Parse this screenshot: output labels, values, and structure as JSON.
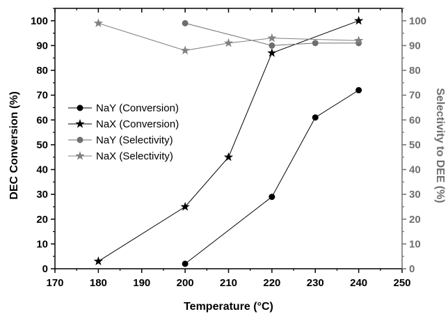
{
  "chart_data": {
    "type": "line",
    "title": "",
    "xlabel": "Temperature (°C)",
    "ylabel": "DEC Conversion (%)",
    "y2label": "Selectivity to DEE (%)",
    "xlim": [
      170,
      250
    ],
    "ylim": [
      0,
      105
    ],
    "y2lim": [
      0,
      105
    ],
    "x_ticks": [
      170,
      180,
      190,
      200,
      210,
      220,
      230,
      240,
      250
    ],
    "y_ticks": [
      0,
      10,
      20,
      30,
      40,
      50,
      60,
      70,
      80,
      90,
      100
    ],
    "y2_ticks": [
      0,
      10,
      20,
      30,
      40,
      50,
      60,
      70,
      80,
      90,
      100
    ],
    "grid": false,
    "legend_position": "center-left",
    "series": [
      {
        "name": "NaY (Conversion)",
        "axis": "left",
        "marker": "circle",
        "color": "#000000",
        "x": [
          200,
          220,
          230,
          240
        ],
        "y": [
          2,
          29,
          61,
          72
        ]
      },
      {
        "name": "NaX (Conversion)",
        "axis": "left",
        "marker": "star",
        "color": "#000000",
        "x": [
          180,
          200,
          210,
          220,
          240
        ],
        "y": [
          3,
          25,
          45,
          87,
          100
        ]
      },
      {
        "name": "NaY (Selectivity)",
        "axis": "right",
        "marker": "circle",
        "color": "#6e6e6e",
        "x": [
          200,
          220,
          230,
          240
        ],
        "y": [
          99,
          90,
          91,
          91
        ]
      },
      {
        "name": "NaX (Selectivity)",
        "axis": "right",
        "marker": "star",
        "color": "#808080",
        "x": [
          180,
          200,
          210,
          220,
          240
        ],
        "y": [
          99,
          88,
          91,
          93,
          92
        ]
      }
    ],
    "colors": {
      "left_axis": "#000000",
      "right_axis": "#6e6e6e"
    }
  }
}
